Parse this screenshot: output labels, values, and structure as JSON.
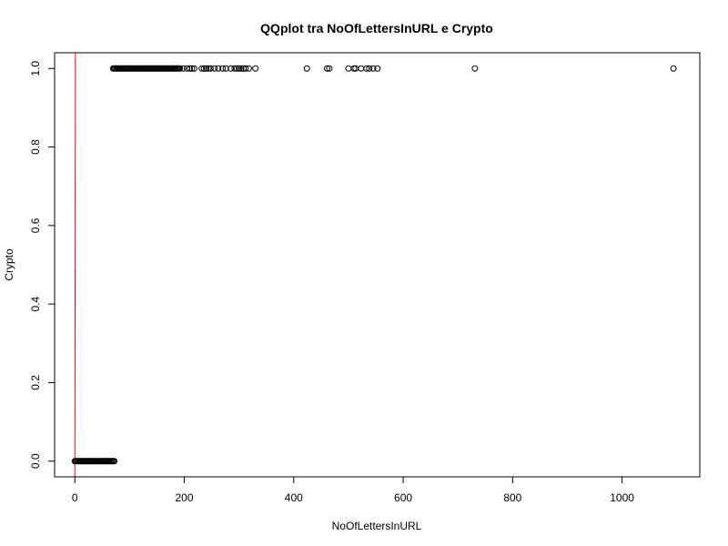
{
  "chart_data": {
    "type": "scatter",
    "title": "QQplot tra NoOfLettersInURL e Crypto",
    "xlabel": "NoOfLettersInURL",
    "ylabel": "Crypto",
    "xlim": [
      -37,
      1142
    ],
    "ylim": [
      -0.04,
      1.04
    ],
    "x_ticks": [
      0,
      200,
      400,
      600,
      800,
      1000
    ],
    "x_tick_labels": [
      "0",
      "200",
      "400",
      "600",
      "800",
      "1000"
    ],
    "y_ticks": [
      0,
      0.2,
      0.4,
      0.6,
      0.8,
      1
    ],
    "y_tick_labels": [
      "0.0",
      "0.2",
      "0.4",
      "0.6",
      "0.8",
      "1.0"
    ],
    "grid": false,
    "reference_line": {
      "type": "identity",
      "color": "#ff0000"
    },
    "marker": "open-circle",
    "series": [
      {
        "x": [
          0,
          2,
          4,
          6,
          8,
          10,
          12,
          14,
          16,
          18,
          20,
          22,
          24,
          26,
          28,
          30,
          32,
          34,
          36,
          38,
          40,
          42,
          44,
          46,
          48,
          50,
          52,
          54,
          56,
          58,
          60,
          62,
          64,
          66,
          68,
          70,
          72
        ],
        "y": [
          0,
          0,
          0,
          0,
          0,
          0,
          0,
          0,
          0,
          0,
          0,
          0,
          0,
          0,
          0,
          0,
          0,
          0,
          0,
          0,
          0,
          0,
          0,
          0,
          0,
          0,
          0,
          0,
          0,
          0,
          0,
          0,
          0,
          0,
          0,
          0,
          0
        ]
      },
      {
        "x": [
          70,
          72,
          74,
          76,
          78,
          80,
          82,
          84,
          86,
          88,
          90,
          92,
          94,
          96,
          98,
          100,
          102,
          104,
          106,
          108,
          110,
          112,
          114,
          116,
          118,
          120,
          122,
          124,
          126,
          128,
          130,
          132,
          134,
          136,
          138,
          140,
          142,
          144,
          146,
          148,
          150,
          152,
          154,
          156,
          158,
          160,
          162,
          164,
          166,
          168,
          170,
          172,
          174,
          176,
          178,
          180,
          182,
          184,
          186,
          188,
          190,
          192,
          198,
          205,
          210,
          214,
          218,
          232,
          236,
          240,
          244,
          248,
          255,
          262,
          270,
          276,
          285,
          292,
          296,
          300,
          304,
          308,
          312,
          318,
          330,
          424,
          461,
          465,
          500,
          510,
          513,
          523,
          533,
          538,
          545,
          553,
          731,
          1094
        ],
        "y": [
          1,
          1,
          1,
          1,
          1,
          1,
          1,
          1,
          1,
          1,
          1,
          1,
          1,
          1,
          1,
          1,
          1,
          1,
          1,
          1,
          1,
          1,
          1,
          1,
          1,
          1,
          1,
          1,
          1,
          1,
          1,
          1,
          1,
          1,
          1,
          1,
          1,
          1,
          1,
          1,
          1,
          1,
          1,
          1,
          1,
          1,
          1,
          1,
          1,
          1,
          1,
          1,
          1,
          1,
          1,
          1,
          1,
          1,
          1,
          1,
          1,
          1,
          1,
          1,
          1,
          1,
          1,
          1,
          1,
          1,
          1,
          1,
          1,
          1,
          1,
          1,
          1,
          1,
          1,
          1,
          1,
          1,
          1,
          1,
          1,
          1,
          1,
          1,
          1,
          1,
          1,
          1,
          1,
          1,
          1,
          1,
          1,
          1
        ]
      }
    ]
  }
}
